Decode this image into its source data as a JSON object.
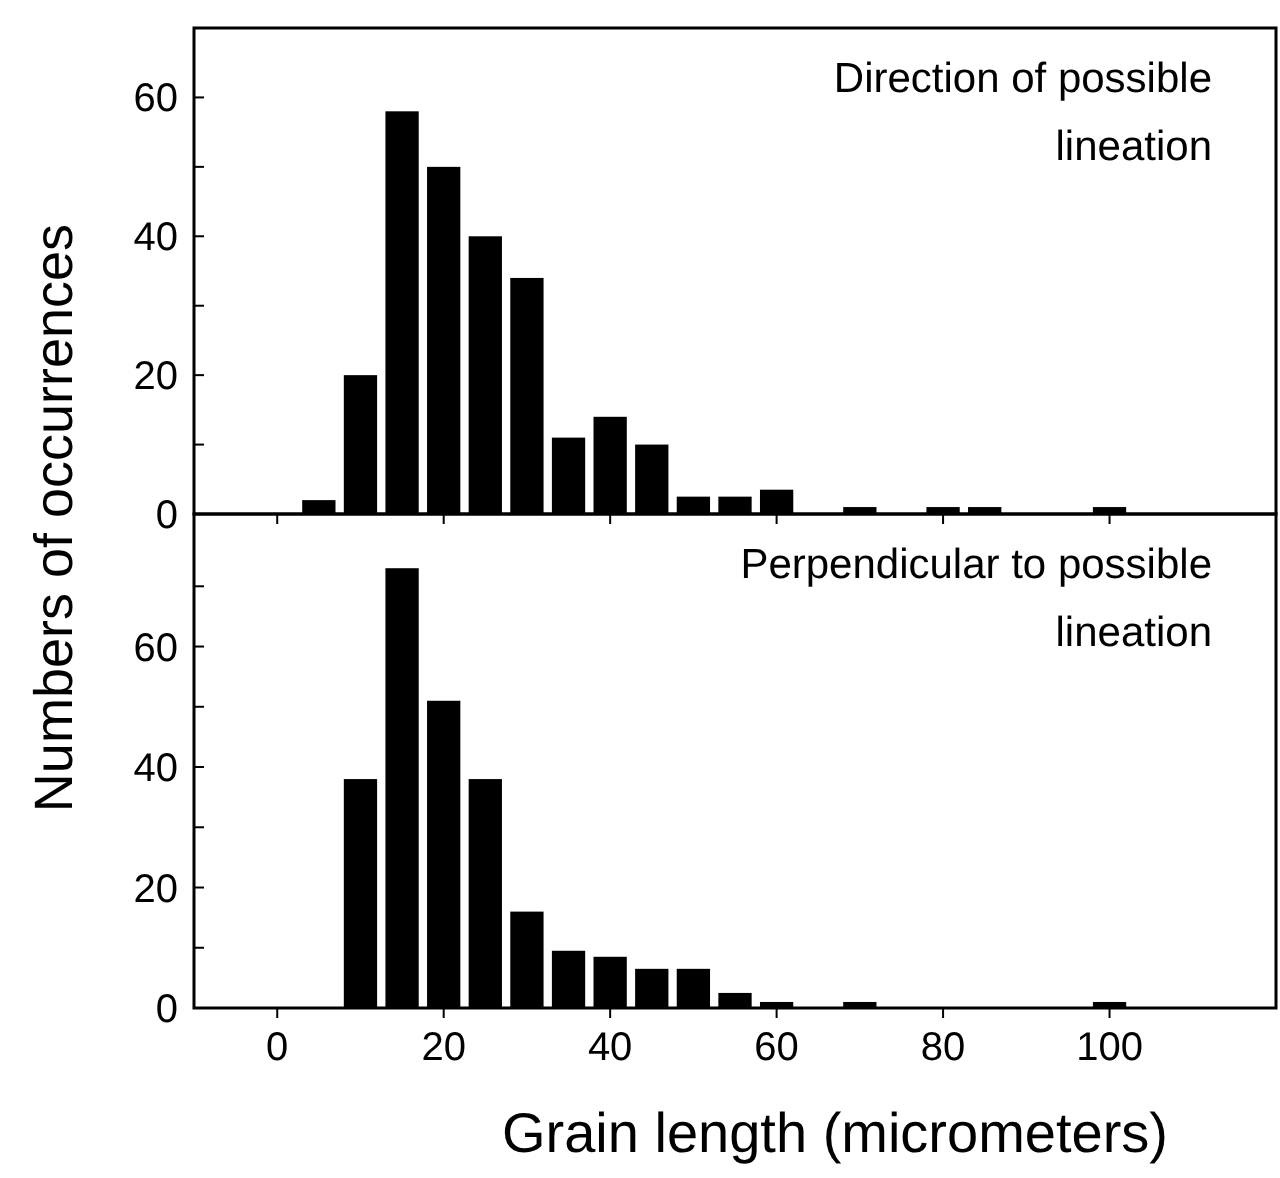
{
  "chart_data": [
    {
      "type": "histogram",
      "ylabel": "Numbers of occurrences",
      "annotations": [
        "Direction of possible lineation"
      ],
      "color": "#000000",
      "bins": [
        2.5,
        7.5,
        12.5,
        17.5,
        22.5,
        27.5,
        32.5,
        37.5,
        42.5,
        47.5,
        52.5,
        57.5,
        62.5,
        67.5,
        72.5,
        77.5,
        82.5,
        87.5,
        92.5,
        97.5,
        102.5
      ],
      "values": [
        2,
        20,
        58,
        50,
        40,
        34,
        11,
        14,
        10,
        2.5,
        2.5,
        3.5,
        0,
        1,
        0,
        1,
        1,
        0,
        0,
        1
      ],
      "xlim": [
        -10,
        120
      ],
      "xticks": [
        0,
        20,
        40,
        60,
        80,
        100
      ],
      "ylim": [
        0,
        70
      ],
      "yticks": [
        0,
        {
          "value": 10,
          "label": null
        },
        20,
        {
          "value": 30,
          "label": null
        },
        40,
        {
          "value": 50,
          "label": null
        },
        60
      ],
      "tick_labels": "y"
    },
    {
      "type": "histogram",
      "xlabel": "Grain length (micrometers)",
      "annotations": [
        "Perpendicular to possible lineation"
      ],
      "color": "#000000",
      "bins": [
        2.5,
        7.5,
        12.5,
        17.5,
        22.5,
        27.5,
        32.5,
        37.5,
        42.5,
        47.5,
        52.5,
        57.5,
        62.5,
        67.5,
        72.5,
        77.5,
        82.5,
        87.5,
        92.5,
        97.5,
        102.5
      ],
      "values": [
        0,
        38,
        73,
        51,
        38,
        16,
        9.5,
        8.5,
        6.5,
        6.5,
        2.5,
        1,
        0,
        1,
        0,
        0,
        0,
        0,
        0,
        1
      ],
      "xlim": [
        -10,
        120
      ],
      "xticks": [
        0,
        20,
        40,
        60,
        80,
        100
      ],
      "ylim": [
        0,
        82
      ],
      "yticks": [
        0,
        {
          "value": 10,
          "label": null
        },
        20,
        {
          "value": 30,
          "label": null
        },
        40,
        {
          "value": 50,
          "label": null
        },
        60,
        {
          "value": 70,
          "label": null
        }
      ]
    }
  ]
}
